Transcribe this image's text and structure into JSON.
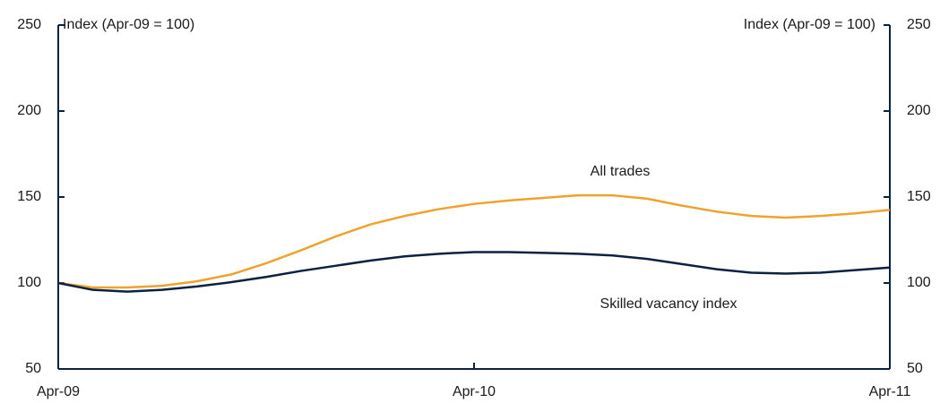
{
  "chart_data": {
    "type": "line",
    "y_label": "Index (Apr-09 = 100)",
    "y2_label": "Index (Apr-09 = 100)",
    "categories": [
      "Apr-09",
      null,
      null,
      null,
      null,
      null,
      null,
      null,
      null,
      null,
      null,
      null,
      "Apr-10",
      null,
      null,
      null,
      null,
      null,
      null,
      null,
      null,
      null,
      null,
      null,
      "Apr-11"
    ],
    "series": [
      {
        "name": "All trades",
        "color": "#f0a22e",
        "values": [
          100,
          97.4,
          97.4,
          98.4,
          101,
          105,
          111.5,
          119,
          127,
          134,
          139,
          143,
          146,
          148,
          149.5,
          151,
          151,
          149,
          145,
          141.5,
          139,
          138,
          139,
          140.5,
          142.5
        ]
      },
      {
        "name": "Skilled vacancy index",
        "color": "#0b2142",
        "values": [
          100,
          96,
          95,
          96,
          98,
          100.5,
          103.5,
          107,
          110,
          113,
          115.5,
          117,
          118,
          118,
          117.5,
          117,
          116,
          114,
          111,
          108,
          106,
          105.5,
          106,
          107.5,
          109
        ]
      }
    ],
    "ylim": [
      50,
      250
    ],
    "yticks": [
      50,
      100,
      150,
      200,
      250
    ],
    "y2lim": [
      50,
      250
    ],
    "y2ticks": [
      50,
      100,
      150,
      200,
      250
    ],
    "grid": false
  }
}
